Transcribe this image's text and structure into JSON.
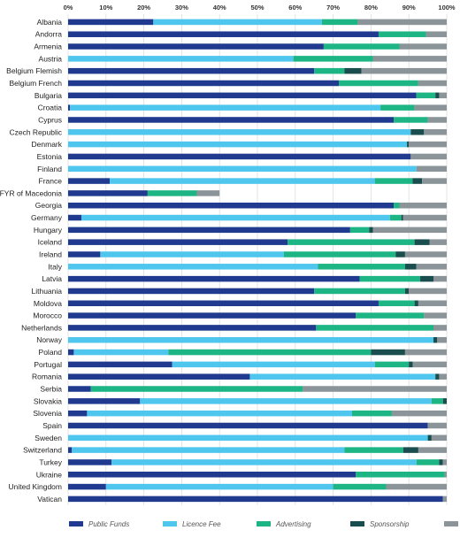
{
  "chart_data": {
    "type": "bar",
    "orientation": "horizontal",
    "stacked": true,
    "xlim": [
      0,
      100
    ],
    "x_ticks": [
      "0%",
      "10%",
      "20%",
      "30%",
      "40%",
      "50%",
      "60%",
      "70%",
      "80%",
      "90%",
      "100%"
    ],
    "grid": true,
    "legend_position": "bottom",
    "categories": [
      "Albania",
      "Andorra",
      "Armenia",
      "Austria",
      "Belgium Flemish",
      "Belgium French",
      "Bulgaria",
      "Croatia",
      "Cyprus",
      "Czech Republic",
      "Denmark",
      "Estonia",
      "Finland",
      "France",
      "FYR of Macedonia",
      "Georgia",
      "Germany",
      "Hungary",
      "Iceland",
      "Ireland",
      "Italy",
      "Latvia",
      "Lithuania",
      "Moldova",
      "Morocco",
      "Netherlands",
      "Norway",
      "Poland",
      "Portugal",
      "Romania",
      "Serbia",
      "Slovakia",
      "Slovenia",
      "Spain",
      "Sweden",
      "Switzerland",
      "Turkey",
      "Ukraine",
      "United Kingdom",
      "Vatican"
    ],
    "series": [
      {
        "name": "Public Funds",
        "color": "#1f3a8f",
        "values": [
          22.5,
          82,
          67.5,
          0,
          65,
          71.5,
          92,
          0.5,
          86,
          0,
          0,
          90.5,
          0,
          11,
          21,
          86,
          3.5,
          74.5,
          58,
          8.5,
          0,
          77,
          65,
          82,
          76,
          65.5,
          0,
          1.5,
          27.5,
          48,
          6,
          19,
          5,
          95,
          0,
          1,
          11.5,
          76,
          10,
          99
        ]
      },
      {
        "name": "Licence Fee",
        "color": "#4fc6ee",
        "values": [
          44.5,
          0,
          0,
          59.5,
          0,
          0,
          0,
          82,
          0,
          90.5,
          89.5,
          0,
          92,
          70,
          0,
          0,
          81.5,
          0,
          0,
          48.5,
          66,
          0,
          0,
          0,
          0,
          0,
          96.5,
          25,
          53.5,
          49,
          0,
          77,
          70,
          0,
          95,
          72,
          80.5,
          0,
          60,
          0
        ]
      },
      {
        "name": "Advertising",
        "color": "#1db584",
        "values": [
          9.5,
          12.5,
          20,
          21,
          8,
          21,
          5,
          9,
          9,
          0,
          0,
          0,
          0,
          10,
          13,
          1.5,
          3,
          5,
          33.5,
          29.5,
          23,
          16,
          24,
          9.5,
          18,
          31,
          0,
          53.5,
          9,
          0,
          56,
          3,
          10.5,
          0,
          0,
          15.5,
          6,
          23.5,
          14,
          0
        ]
      },
      {
        "name": "Sponsorship",
        "color": "#1a4e4e",
        "values": [
          0,
          0,
          0,
          0,
          4.5,
          0,
          1,
          0,
          0,
          3.5,
          0.5,
          0,
          0,
          2.5,
          0,
          0,
          0.5,
          1,
          4,
          2.5,
          3,
          3.5,
          1,
          1,
          0,
          0,
          1,
          9,
          1,
          1,
          0,
          1,
          0,
          0,
          1,
          4,
          1,
          0,
          0,
          0
        ]
      },
      {
        "name": "Other",
        "color": "#8a9499",
        "values": [
          23.5,
          5.5,
          12.5,
          19.5,
          22.5,
          7.5,
          2,
          8.5,
          5,
          6,
          10,
          9.5,
          8,
          6.5,
          6,
          12.5,
          11.5,
          19.5,
          4.5,
          11,
          8,
          3.5,
          10,
          7.5,
          6,
          3.5,
          2.5,
          11,
          9,
          2,
          38,
          0,
          14.5,
          5,
          4,
          7.5,
          1,
          0.5,
          16,
          1
        ]
      }
    ]
  }
}
